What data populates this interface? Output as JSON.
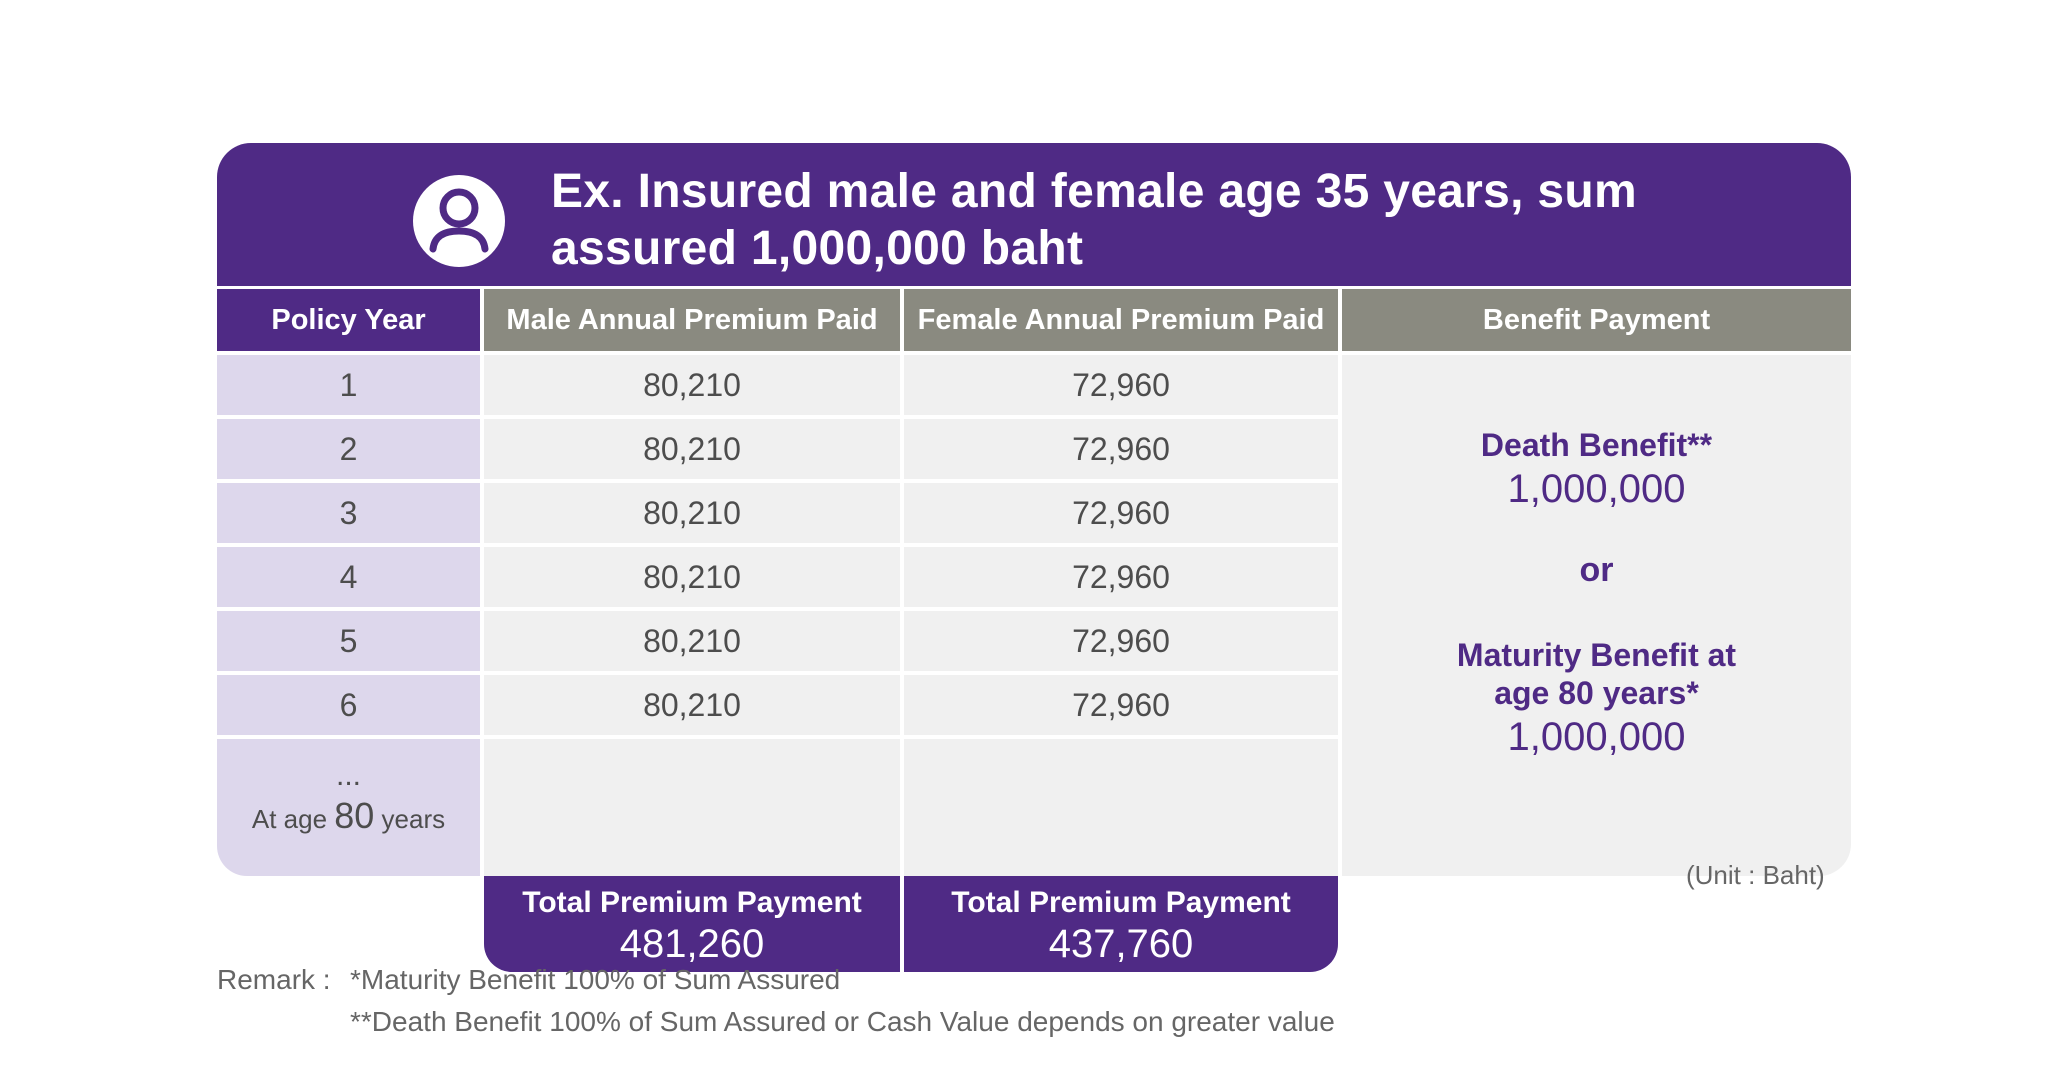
{
  "title": "Ex. Insured male and female age 35 years, sum assured 1,000,000 baht",
  "icon": "user-avatar-icon",
  "colors": {
    "primary": "#4f2a85",
    "header_gray": "#8a8a80",
    "row_purple": "#ddd7ec",
    "row_gray": "#f0f0f0"
  },
  "columns": {
    "policy_year": "Policy Year",
    "male": "Male Annual Premium Paid",
    "female": "Female Annual Premium Paid",
    "benefit": "Benefit Payment"
  },
  "rows": [
    {
      "year": "1",
      "male": "80,210",
      "female": "72,960"
    },
    {
      "year": "2",
      "male": "80,210",
      "female": "72,960"
    },
    {
      "year": "3",
      "male": "80,210",
      "female": "72,960"
    },
    {
      "year": "4",
      "male": "80,210",
      "female": "72,960"
    },
    {
      "year": "5",
      "male": "80,210",
      "female": "72,960"
    },
    {
      "year": "6",
      "male": "80,210",
      "female": "72,960"
    }
  ],
  "last_row": {
    "dots": "...",
    "prefix": "At age",
    "age": "80",
    "suffix": "years"
  },
  "benefit": {
    "death_label": "Death Benefit**",
    "death_value": "1,000,000",
    "or": "or",
    "maturity_label_1": "Maturity Benefit at",
    "maturity_label_2": "age 80 years*",
    "maturity_value": "1,000,000"
  },
  "totals": {
    "male_label": "Total Premium Payment",
    "male_value": "481,260",
    "female_label": "Total Premium Payment",
    "female_value": "437,760"
  },
  "unit": "(Unit : Baht)",
  "remarks": {
    "prefix": "Remark :",
    "line1": "*Maturity Benefit 100% of Sum Assured",
    "line2": "**Death Benefit 100% of Sum Assured or Cash Value depends on greater value"
  }
}
